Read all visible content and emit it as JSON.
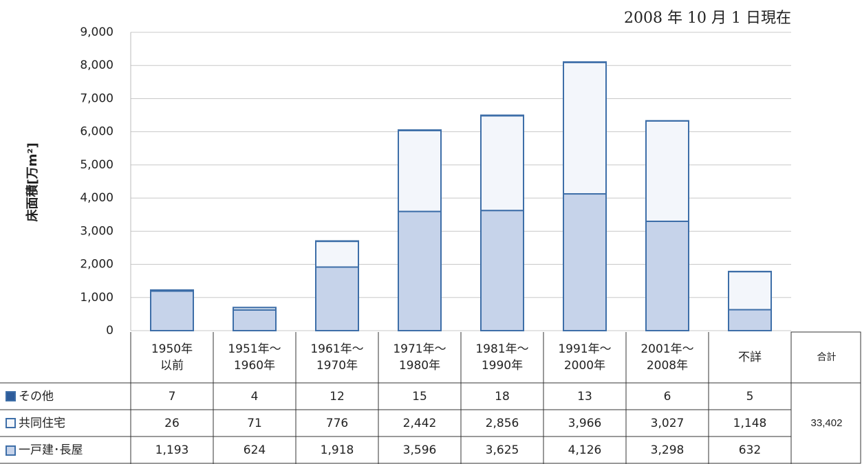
{
  "chart_data": {
    "type": "stacked-bar",
    "annotation": "2008 年 10 月 1 日現在",
    "y_label": "床面積[万m²]",
    "categories": [
      "1950年\n以前",
      "1951年～\n1960年",
      "1961年～\n1970年",
      "1971年～\n1980年",
      "1981年～\n1990年",
      "1991年～\n2000年",
      "2001年～\n2008年",
      "不詳"
    ],
    "series": [
      {
        "name": "その他",
        "color": "#2e5c9a",
        "values": [
          7,
          4,
          12,
          15,
          18,
          13,
          6,
          5
        ]
      },
      {
        "name": "共同住宅",
        "color": "#f3f6fb",
        "values": [
          26,
          71,
          776,
          2442,
          2856,
          3966,
          3027,
          1148
        ],
        "value_labels": [
          "26",
          "71",
          "776",
          "2,442",
          "2,856",
          "3,966",
          "3,027",
          "1,148"
        ]
      },
      {
        "name": "一戸建･長屋",
        "color": "#c6d3ea",
        "values": [
          1193,
          624,
          1918,
          3596,
          3625,
          4126,
          3298,
          632
        ],
        "value_labels": [
          "1,193",
          "624",
          "1,918",
          "3,596",
          "3,625",
          "4,126",
          "3,298",
          "632"
        ]
      }
    ],
    "total_header": "合計",
    "total": "33,402",
    "ylim": [
      0,
      9000
    ],
    "yticks": [
      0,
      {
        "value": 1000,
        "label": "1,000"
      },
      {
        "value": 2000,
        "label": "2,000"
      },
      {
        "value": 3000,
        "label": "3,000"
      },
      {
        "value": 4000,
        "label": "4,000"
      },
      {
        "value": 5000,
        "label": "5,000"
      },
      {
        "value": 6000,
        "label": "6,000"
      },
      {
        "value": 7000,
        "label": "7,000"
      },
      {
        "value": 8000,
        "label": "8,000"
      },
      {
        "value": 9000,
        "label": "9,000"
      }
    ],
    "grid": true
  }
}
